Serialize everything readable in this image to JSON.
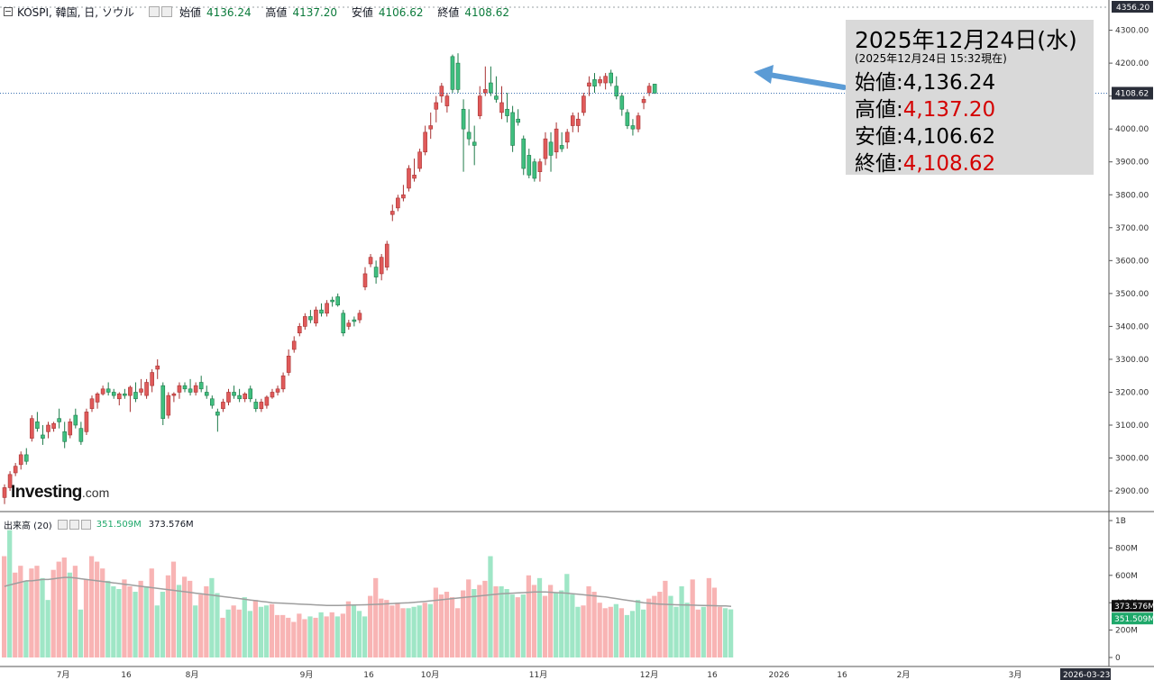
{
  "header": {
    "symbol": "KOSPI, 韓国, 日, ソウル",
    "open_label": "始値",
    "open": "4136.24",
    "high_label": "高値",
    "high": "4137.20",
    "low_label": "安値",
    "low": "4106.62",
    "close_label": "終値",
    "close": "4108.62"
  },
  "volume_header": {
    "label": "出来高 (20)",
    "value": "351.509M",
    "ma": "373.576M"
  },
  "logo": {
    "brand": "Investing",
    "domain": ".com"
  },
  "callout": {
    "date": "2025年12月24日(水)",
    "asof": "(2025年12月24日 15:32現在)",
    "open": "始値:4,136.24",
    "high_label": "高値:",
    "high": "4,137.20",
    "low": "安値:4,106.62",
    "close_label": "終値:",
    "close": "4,108.62"
  },
  "colors": {
    "up": "#e05a5a",
    "up_border": "#a83232",
    "down": "#3fbf7f",
    "down_border": "#1f7a4a",
    "vol_up": "#f8b4b4",
    "vol_down": "#9fe6c6",
    "vol_ma": "#9e9e9e",
    "arrow": "#5b9bd5",
    "price_line": "#3a6fb0",
    "last_price_bg": "#2a2e39",
    "last_vol_up_bg": "#1ea86a"
  },
  "chart_data": [
    {
      "type": "candlestick",
      "y_ticks": [
        2900,
        3000,
        3100,
        3200,
        3300,
        3400,
        3500,
        3600,
        3700,
        3800,
        3900,
        4000,
        4100,
        4200,
        4300
      ],
      "y_tick_labels": [
        "2900.00",
        "3000.00",
        "3100.00",
        "3200.00",
        "3300.00",
        "3400.00",
        "3500.00",
        "3600.00",
        "3700.00",
        "3800.00",
        "3900.00",
        "4000.00",
        "4100.00",
        "4200.00",
        "4300.00"
      ],
      "ylim": [
        2840,
        4370
      ],
      "top_label": "4356.20",
      "last_price_label": "4108.62",
      "last_price": 4108.62,
      "x_labels": [
        "7月",
        "16",
        "8月",
        "9月",
        "16",
        "10月",
        "11月",
        "12月",
        "16",
        "2026",
        "16",
        "2月",
        "3月"
      ],
      "x_end_label": "2026-03-23",
      "ohlc": [
        [
          2880,
          2920,
          2860,
          2910
        ],
        [
          2910,
          2960,
          2900,
          2950
        ],
        [
          2955,
          2985,
          2945,
          2975
        ],
        [
          2980,
          3020,
          2965,
          3010
        ],
        [
          3010,
          3030,
          2980,
          2990
        ],
        [
          3060,
          3130,
          3050,
          3120
        ],
        [
          3110,
          3140,
          3080,
          3090
        ],
        [
          3070,
          3100,
          3040,
          3060
        ],
        [
          3080,
          3110,
          3060,
          3100
        ],
        [
          3090,
          3110,
          3080,
          3105
        ],
        [
          3120,
          3150,
          3090,
          3110
        ],
        [
          3080,
          3110,
          3030,
          3050
        ],
        [
          3070,
          3120,
          3060,
          3110
        ],
        [
          3130,
          3150,
          3090,
          3100
        ],
        [
          3090,
          3110,
          3040,
          3050
        ],
        [
          3080,
          3150,
          3070,
          3140
        ],
        [
          3150,
          3190,
          3140,
          3180
        ],
        [
          3170,
          3200,
          3150,
          3195
        ],
        [
          3195,
          3220,
          3190,
          3210
        ],
        [
          3210,
          3230,
          3190,
          3200
        ],
        [
          3200,
          3210,
          3180,
          3190
        ],
        [
          3180,
          3200,
          3160,
          3195
        ],
        [
          3195,
          3210,
          3180,
          3190
        ],
        [
          3190,
          3220,
          3140,
          3215
        ],
        [
          3200,
          3230,
          3170,
          3180
        ],
        [
          3200,
          3240,
          3190,
          3210
        ],
        [
          3190,
          3240,
          3180,
          3230
        ],
        [
          3220,
          3270,
          3200,
          3260
        ],
        [
          3270,
          3300,
          3240,
          3280
        ],
        [
          3220,
          3230,
          3100,
          3120
        ],
        [
          3130,
          3200,
          3120,
          3190
        ],
        [
          3190,
          3200,
          3170,
          3195
        ],
        [
          3200,
          3230,
          3180,
          3220
        ],
        [
          3220,
          3230,
          3200,
          3210
        ],
        [
          3210,
          3240,
          3190,
          3200
        ],
        [
          3200,
          3230,
          3190,
          3220
        ],
        [
          3230,
          3250,
          3200,
          3210
        ],
        [
          3200,
          3220,
          3180,
          3190
        ],
        [
          3180,
          3190,
          3150,
          3160
        ],
        [
          3140,
          3150,
          3080,
          3130
        ],
        [
          3150,
          3180,
          3140,
          3170
        ],
        [
          3170,
          3210,
          3160,
          3200
        ],
        [
          3200,
          3220,
          3180,
          3190
        ],
        [
          3190,
          3210,
          3170,
          3180
        ],
        [
          3180,
          3200,
          3170,
          3195
        ],
        [
          3210,
          3220,
          3170,
          3180
        ],
        [
          3170,
          3180,
          3140,
          3150
        ],
        [
          3150,
          3180,
          3140,
          3170
        ],
        [
          3160,
          3190,
          3150,
          3185
        ],
        [
          3185,
          3210,
          3180,
          3200
        ],
        [
          3200,
          3220,
          3190,
          3210
        ],
        [
          3210,
          3260,
          3200,
          3250
        ],
        [
          3260,
          3330,
          3250,
          3310
        ],
        [
          3330,
          3370,
          3320,
          3355
        ],
        [
          3380,
          3410,
          3370,
          3400
        ],
        [
          3400,
          3440,
          3390,
          3430
        ],
        [
          3430,
          3450,
          3410,
          3420
        ],
        [
          3410,
          3460,
          3400,
          3450
        ],
        [
          3450,
          3470,
          3430,
          3440
        ],
        [
          3440,
          3480,
          3430,
          3470
        ],
        [
          3480,
          3490,
          3460,
          3475
        ],
        [
          3490,
          3500,
          3460,
          3465
        ],
        [
          3440,
          3450,
          3370,
          3380
        ],
        [
          3400,
          3420,
          3390,
          3410
        ],
        [
          3420,
          3430,
          3400,
          3415
        ],
        [
          3420,
          3450,
          3410,
          3440
        ],
        [
          3520,
          3580,
          3510,
          3560
        ],
        [
          3590,
          3620,
          3580,
          3610
        ],
        [
          3580,
          3600,
          3530,
          3550
        ],
        [
          3560,
          3620,
          3540,
          3610
        ],
        [
          3580,
          3660,
          3570,
          3650
        ],
        [
          3740,
          3770,
          3720,
          3750
        ],
        [
          3760,
          3800,
          3750,
          3790
        ],
        [
          3790,
          3830,
          3780,
          3800
        ],
        [
          3820,
          3890,
          3810,
          3880
        ],
        [
          3850,
          3910,
          3840,
          3860
        ],
        [
          3880,
          3940,
          3870,
          3930
        ],
        [
          3930,
          4010,
          3920,
          3990
        ],
        [
          4000,
          4050,
          3970,
          4010
        ],
        [
          4060,
          4100,
          4020,
          4080
        ],
        [
          4100,
          4140,
          4080,
          4130
        ],
        [
          4070,
          4110,
          4050,
          4100
        ],
        [
          4220,
          4226,
          4110,
          4120
        ],
        [
          4200,
          4230,
          4110,
          4120
        ],
        [
          4060,
          4090,
          3870,
          4000
        ],
        [
          3990,
          4060,
          3950,
          3970
        ],
        [
          3960,
          4010,
          3890,
          3950
        ],
        [
          4040,
          4130,
          4030,
          4100
        ],
        [
          4110,
          4190,
          4100,
          4120
        ],
        [
          4140,
          4190,
          4100,
          4110
        ],
        [
          4100,
          4160,
          4080,
          4090
        ],
        [
          4050,
          4130,
          4030,
          4080
        ],
        [
          4060,
          4110,
          4020,
          4040
        ],
        [
          4050,
          4070,
          3930,
          3950
        ],
        [
          4030,
          4060,
          4010,
          4020
        ],
        [
          3970,
          3980,
          3860,
          3880
        ],
        [
          3920,
          3940,
          3850,
          3860
        ],
        [
          3900,
          3910,
          3840,
          3850
        ],
        [
          3870,
          3910,
          3840,
          3900
        ],
        [
          3910,
          3990,
          3890,
          3970
        ],
        [
          3960,
          3990,
          3870,
          3920
        ],
        [
          3930,
          4020,
          3910,
          4000
        ],
        [
          3950,
          3990,
          3930,
          3940
        ],
        [
          3960,
          4000,
          3940,
          3990
        ],
        [
          4010,
          4050,
          3990,
          4040
        ],
        [
          4010,
          4050,
          3990,
          4030
        ],
        [
          4050,
          4110,
          4040,
          4100
        ],
        [
          4130,
          4160,
          4100,
          4140
        ],
        [
          4150,
          4170,
          4110,
          4130
        ],
        [
          4140,
          4160,
          4130,
          4150
        ],
        [
          4140,
          4170,
          4120,
          4160
        ],
        [
          4170,
          4180,
          4130,
          4140
        ],
        [
          4130,
          4160,
          4090,
          4100
        ],
        [
          4100,
          4110,
          4040,
          4060
        ],
        [
          4050,
          4060,
          4000,
          4010
        ],
        [
          4010,
          4030,
          3980,
          4000
        ],
        [
          4000,
          4050,
          3990,
          4040
        ],
        [
          4080,
          4100,
          4060,
          4090
        ],
        [
          4110,
          4140,
          4100,
          4130
        ],
        [
          4136.24,
          4137.2,
          4106.62,
          4108.62
        ]
      ]
    },
    {
      "type": "bar",
      "name": "出来高 (20)",
      "y_tick_labels": [
        "0",
        "200M",
        "400M",
        "600M",
        "800M",
        "1B"
      ],
      "ylim": [
        0,
        1000
      ],
      "values_M": [
        740,
        930,
        620,
        670,
        560,
        650,
        670,
        580,
        420,
        640,
        700,
        730,
        620,
        670,
        350,
        570,
        740,
        700,
        650,
        560,
        520,
        500,
        570,
        520,
        480,
        560,
        520,
        650,
        380,
        480,
        600,
        700,
        530,
        590,
        560,
        380,
        460,
        520,
        580,
        470,
        290,
        350,
        380,
        350,
        440,
        340,
        420,
        370,
        380,
        390,
        310,
        310,
        290,
        260,
        320,
        280,
        300,
        290,
        330,
        300,
        330,
        300,
        320,
        410,
        380,
        340,
        300,
        450,
        580,
        430,
        420,
        380,
        400,
        360,
        360,
        370,
        380,
        400,
        390,
        510,
        460,
        480,
        440,
        360,
        490,
        570,
        500,
        530,
        560,
        740,
        520,
        520,
        500,
        460,
        440,
        460,
        600,
        530,
        580,
        450,
        530,
        470,
        490,
        610,
        460,
        370,
        380,
        520,
        480,
        400,
        360,
        370,
        390,
        360,
        310,
        340,
        420,
        350,
        430,
        450,
        480,
        560,
        450,
        370,
        520,
        400,
        570,
        350,
        370,
        580,
        510,
        370,
        360,
        351.5
      ],
      "up": [
        1,
        0,
        1,
        1,
        0,
        1,
        1,
        0,
        0,
        1,
        1,
        1,
        0,
        1,
        0,
        1,
        1,
        1,
        1,
        0,
        0,
        0,
        1,
        1,
        0,
        1,
        0,
        1,
        0,
        0,
        1,
        1,
        0,
        1,
        1,
        0,
        1,
        1,
        0,
        0,
        1,
        0,
        1,
        1,
        0,
        0,
        1,
        0,
        0,
        1,
        1,
        1,
        1,
        1,
        1,
        1,
        0,
        1,
        0,
        1,
        1,
        0,
        1,
        1,
        0,
        0,
        0,
        1,
        1,
        1,
        1,
        1,
        1,
        1,
        0,
        0,
        0,
        1,
        0,
        1,
        1,
        1,
        1,
        1,
        1,
        1,
        0,
        1,
        1,
        0,
        1,
        0,
        0,
        0,
        1,
        0,
        1,
        1,
        0,
        1,
        1,
        0,
        0,
        0,
        0,
        0,
        1,
        1,
        1,
        1,
        1,
        1,
        0,
        1,
        0,
        0,
        0,
        0,
        1,
        1,
        1,
        1,
        0,
        0,
        0,
        0,
        1,
        1,
        0,
        1,
        1,
        1,
        0,
        0
      ],
      "ma20_M": [
        520,
        530,
        540,
        550,
        560,
        560,
        565,
        570,
        570,
        575,
        580,
        585,
        585,
        580,
        575,
        570,
        565,
        560,
        555,
        550,
        545,
        540,
        535,
        530,
        525,
        520,
        515,
        510,
        505,
        500,
        495,
        490,
        485,
        480,
        475,
        470,
        465,
        460,
        455,
        450,
        445,
        440,
        435,
        430,
        425,
        420,
        415,
        410,
        405,
        400,
        398,
        396,
        394,
        392,
        390,
        388,
        386,
        384,
        382,
        380,
        380,
        380,
        381,
        382,
        383,
        384,
        385,
        386,
        388,
        390,
        392,
        394,
        396,
        398,
        400,
        403,
        406,
        410,
        414,
        418,
        422,
        426,
        430,
        434,
        438,
        442,
        446,
        450,
        454,
        458,
        462,
        465,
        468,
        470,
        472,
        474,
        476,
        478,
        478,
        478,
        476,
        474,
        472,
        470,
        466,
        462,
        458,
        454,
        450,
        446,
        442,
        436,
        430,
        424,
        418,
        412,
        406,
        400,
        396,
        392,
        390,
        388,
        386,
        385,
        384,
        383,
        382,
        381,
        380,
        379,
        378,
        377,
        376,
        373.576
      ]
    }
  ]
}
